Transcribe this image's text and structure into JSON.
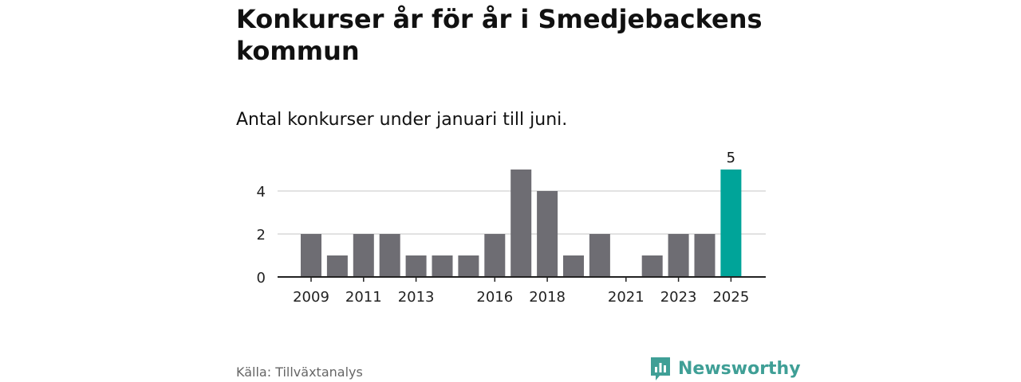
{
  "title": "Konkurser år för år i Smedjebackens kommun",
  "subtitle": "Antal konkurser under januari till juni.",
  "source": "Källa: Tillväxtanalys",
  "brand": "Newsworthy",
  "colors": {
    "bar": "#6e6d73",
    "highlight": "#00a499",
    "brand": "#3f9f96",
    "grid": "#d9d9d9",
    "axis": "#222222"
  },
  "chart_data": {
    "type": "bar",
    "categories": [
      "2009",
      "2010",
      "2011",
      "2012",
      "2013",
      "2014",
      "2015",
      "2016",
      "2017",
      "2018",
      "2019",
      "2020",
      "2021",
      "2022",
      "2023",
      "2024",
      "2025"
    ],
    "values": [
      2,
      1,
      2,
      2,
      1,
      1,
      1,
      2,
      5,
      4,
      1,
      2,
      0,
      1,
      2,
      2,
      5
    ],
    "x_tick_labels": [
      "2009",
      "2011",
      "2013",
      "2016",
      "2018",
      "2021",
      "2023",
      "2025"
    ],
    "y_ticks": [
      0,
      2,
      4
    ],
    "ylim": [
      0,
      5
    ],
    "highlight": "2025",
    "value_labels": [
      {
        "category": "2025",
        "text": "5"
      }
    ],
    "grid": true,
    "legend": "none"
  }
}
